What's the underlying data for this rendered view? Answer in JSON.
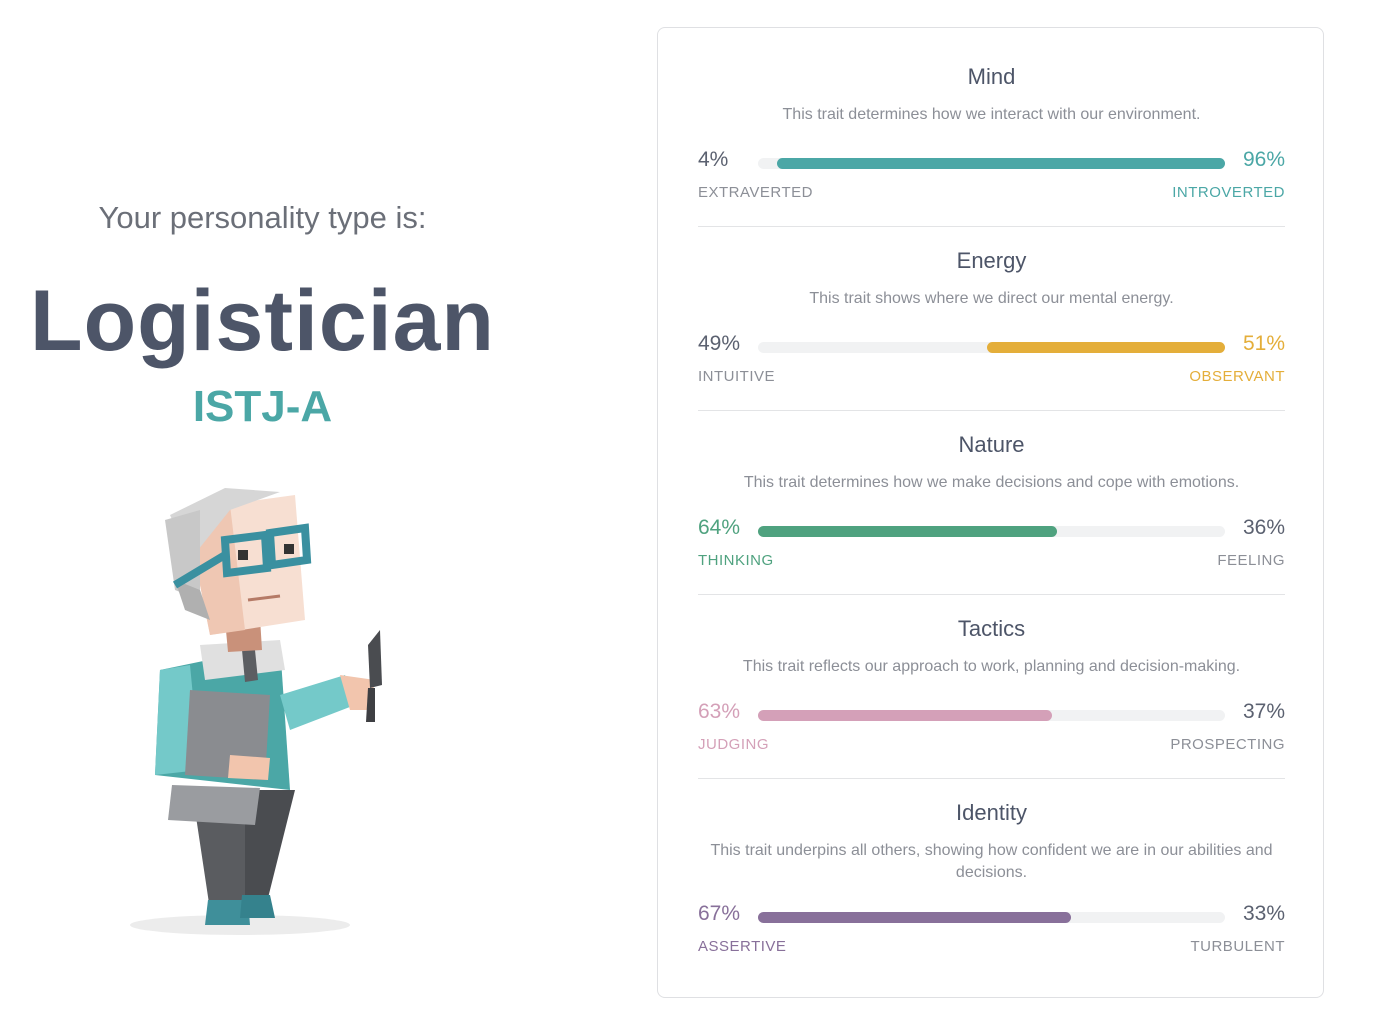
{
  "intro": "Your personality type is:",
  "type_name": "Logistician",
  "type_code": "ISTJ-A",
  "colors": {
    "mind": "#4ba7a6",
    "energy": "#e4ae3a",
    "nature": "#4fa27f",
    "tactics": "#d4a0b8",
    "identity": "#88709a",
    "neutral_text": "#5b6170"
  },
  "traits": [
    {
      "title": "Mind",
      "description": "This trait determines how we interact with our environment.",
      "left_pct": "4%",
      "right_pct": "96%",
      "left_label": "EXTRAVERTED",
      "right_label": "INTROVERTED",
      "dominant": "right",
      "dominant_value": 96
    },
    {
      "title": "Energy",
      "description": "This trait shows where we direct our mental energy.",
      "left_pct": "49%",
      "right_pct": "51%",
      "left_label": "INTUITIVE",
      "right_label": "OBSERVANT",
      "dominant": "right",
      "dominant_value": 51
    },
    {
      "title": "Nature",
      "description": "This trait determines how we make decisions and cope with emotions.",
      "left_pct": "64%",
      "right_pct": "36%",
      "left_label": "THINKING",
      "right_label": "FEELING",
      "dominant": "left",
      "dominant_value": 64
    },
    {
      "title": "Tactics",
      "description": "This trait reflects our approach to work, planning and decision-making.",
      "left_pct": "63%",
      "right_pct": "37%",
      "left_label": "JUDGING",
      "right_label": "PROSPECTING",
      "dominant": "left",
      "dominant_value": 63
    },
    {
      "title": "Identity",
      "description": "This trait underpins all others, showing how confident we are in our abilities and decisions.",
      "left_pct": "67%",
      "right_pct": "33%",
      "left_label": "ASSERTIVE",
      "right_label": "TURBULENT",
      "dominant": "left",
      "dominant_value": 67
    }
  ]
}
